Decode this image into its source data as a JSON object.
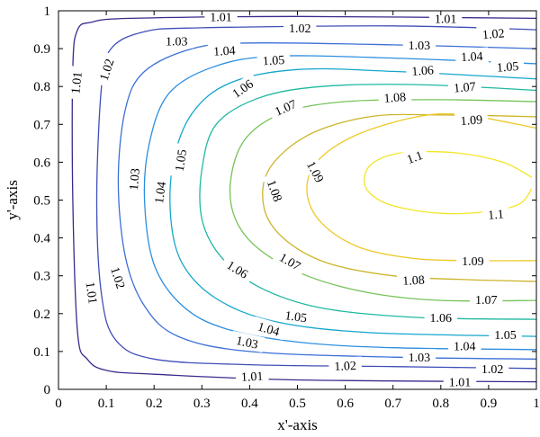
{
  "chart_data": {
    "type": "contour",
    "title": "",
    "xlabel": "x'-axis",
    "ylabel": "y'-axis",
    "xlim": [
      0,
      1
    ],
    "ylim": [
      0,
      1
    ],
    "x_ticks": [
      "0",
      "0.1",
      "0.2",
      "0.3",
      "0.4",
      "0.5",
      "0.6",
      "0.7",
      "0.8",
      "0.9",
      "1"
    ],
    "y_ticks": [
      "0",
      "0.1",
      "0.2",
      "0.3",
      "0.4",
      "0.5",
      "0.6",
      "0.7",
      "0.8",
      "0.9",
      "1"
    ],
    "grid": false,
    "levels": [
      {
        "label": "1.01",
        "value": 1.01,
        "color": "#3b2a8c",
        "points": [
          [
            1.0,
            0.98
          ],
          [
            0.5,
            0.985
          ],
          [
            0.15,
            0.98
          ],
          [
            0.07,
            0.97
          ],
          [
            0.04,
            0.95
          ],
          [
            0.03,
            0.85
          ],
          [
            0.03,
            0.5
          ],
          [
            0.04,
            0.15
          ],
          [
            0.06,
            0.08
          ],
          [
            0.1,
            0.05
          ],
          [
            0.2,
            0.04
          ],
          [
            0.5,
            0.025
          ],
          [
            1.0,
            0.02
          ]
        ],
        "labels": [
          {
            "x": 0.34,
            "y": 0.985,
            "text": "1.01",
            "angle": 0
          },
          {
            "x": 0.81,
            "y": 0.98,
            "text": "1.01",
            "angle": 0
          },
          {
            "x": 0.037,
            "y": 0.81,
            "text": "1.01",
            "angle": -84
          },
          {
            "x": 0.07,
            "y": 0.255,
            "text": "1.01",
            "angle": 82
          },
          {
            "x": 0.405,
            "y": 0.035,
            "text": "1.01",
            "angle": -3
          },
          {
            "x": 0.84,
            "y": 0.02,
            "text": "1.01",
            "angle": 0
          }
        ]
      },
      {
        "label": "1.02",
        "value": 1.02,
        "color": "#3f4fb8",
        "points": [
          [
            1.0,
            0.95
          ],
          [
            0.7,
            0.96
          ],
          [
            0.3,
            0.955
          ],
          [
            0.18,
            0.945
          ],
          [
            0.11,
            0.9
          ],
          [
            0.09,
            0.8
          ],
          [
            0.08,
            0.5
          ],
          [
            0.09,
            0.25
          ],
          [
            0.12,
            0.13
          ],
          [
            0.2,
            0.08
          ],
          [
            0.4,
            0.065
          ],
          [
            0.7,
            0.06
          ],
          [
            1.0,
            0.055
          ]
        ],
        "labels": [
          {
            "x": 0.505,
            "y": 0.955,
            "text": "1.02",
            "angle": 0
          },
          {
            "x": 0.91,
            "y": 0.94,
            "text": "1.02",
            "angle": -5
          },
          {
            "x": 0.1,
            "y": 0.845,
            "text": "1.02",
            "angle": -72
          },
          {
            "x": 0.125,
            "y": 0.295,
            "text": "1.02",
            "angle": 72
          },
          {
            "x": 0.6,
            "y": 0.063,
            "text": "1.02",
            "angle": -3
          },
          {
            "x": 0.908,
            "y": 0.055,
            "text": "1.02",
            "angle": 0
          }
        ]
      },
      {
        "label": "1.03",
        "value": 1.03,
        "color": "#3c6fd6",
        "points": [
          [
            1.0,
            0.9
          ],
          [
            0.7,
            0.91
          ],
          [
            0.4,
            0.915
          ],
          [
            0.28,
            0.9
          ],
          [
            0.18,
            0.84
          ],
          [
            0.14,
            0.74
          ],
          [
            0.125,
            0.55
          ],
          [
            0.14,
            0.35
          ],
          [
            0.18,
            0.22
          ],
          [
            0.25,
            0.14
          ],
          [
            0.4,
            0.1
          ],
          [
            0.7,
            0.085
          ],
          [
            1.0,
            0.08
          ]
        ],
        "labels": [
          {
            "x": 0.247,
            "y": 0.92,
            "text": "1.03",
            "angle": 0
          },
          {
            "x": 0.755,
            "y": 0.91,
            "text": "1.03",
            "angle": 0
          },
          {
            "x": 0.158,
            "y": 0.555,
            "text": "1.03",
            "angle": -85
          },
          {
            "x": 0.395,
            "y": 0.125,
            "text": "1.03",
            "angle": 12
          },
          {
            "x": 0.755,
            "y": 0.085,
            "text": "1.03",
            "angle": 0
          }
        ]
      },
      {
        "label": "1.04",
        "value": 1.04,
        "color": "#2d8fe0",
        "points": [
          [
            1.0,
            0.86
          ],
          [
            0.7,
            0.875
          ],
          [
            0.45,
            0.88
          ],
          [
            0.32,
            0.85
          ],
          [
            0.23,
            0.78
          ],
          [
            0.19,
            0.65
          ],
          [
            0.18,
            0.5
          ],
          [
            0.2,
            0.33
          ],
          [
            0.26,
            0.22
          ],
          [
            0.35,
            0.16
          ],
          [
            0.5,
            0.125
          ],
          [
            0.7,
            0.11
          ],
          [
            1.0,
            0.105
          ]
        ],
        "labels": [
          {
            "x": 0.347,
            "y": 0.895,
            "text": "1.04",
            "angle": -3
          },
          {
            "x": 0.865,
            "y": 0.88,
            "text": "1.04",
            "angle": -3
          },
          {
            "x": 0.212,
            "y": 0.52,
            "text": "1.04",
            "angle": -82
          },
          {
            "x": 0.44,
            "y": 0.16,
            "text": "1.04",
            "angle": 16
          },
          {
            "x": 0.85,
            "y": 0.115,
            "text": "1.04",
            "angle": 0
          }
        ]
      },
      {
        "label": "1.05",
        "value": 1.05,
        "color": "#16a6cc",
        "points": [
          [
            1.0,
            0.82
          ],
          [
            0.7,
            0.84
          ],
          [
            0.5,
            0.845
          ],
          [
            0.36,
            0.81
          ],
          [
            0.28,
            0.73
          ],
          [
            0.24,
            0.6
          ],
          [
            0.235,
            0.45
          ],
          [
            0.26,
            0.33
          ],
          [
            0.33,
            0.24
          ],
          [
            0.45,
            0.18
          ],
          [
            0.65,
            0.15
          ],
          [
            1.0,
            0.14
          ]
        ],
        "labels": [
          {
            "x": 0.45,
            "y": 0.87,
            "text": "1.05",
            "angle": -3
          },
          {
            "x": 0.94,
            "y": 0.853,
            "text": "1.05",
            "angle": -4
          },
          {
            "x": 0.255,
            "y": 0.605,
            "text": "1.05",
            "angle": -82
          },
          {
            "x": 0.497,
            "y": 0.193,
            "text": "1.05",
            "angle": 8
          },
          {
            "x": 0.935,
            "y": 0.145,
            "text": "1.05",
            "angle": 0
          }
        ]
      },
      {
        "label": "1.06",
        "value": 1.06,
        "color": "#1fb8a0",
        "points": [
          [
            1.0,
            0.79
          ],
          [
            0.75,
            0.805
          ],
          [
            0.55,
            0.8
          ],
          [
            0.42,
            0.77
          ],
          [
            0.33,
            0.7
          ],
          [
            0.3,
            0.58
          ],
          [
            0.3,
            0.45
          ],
          [
            0.34,
            0.35
          ],
          [
            0.42,
            0.27
          ],
          [
            0.55,
            0.215
          ],
          [
            0.75,
            0.19
          ],
          [
            1.0,
            0.185
          ]
        ],
        "labels": [
          {
            "x": 0.762,
            "y": 0.843,
            "text": "1.06",
            "angle": -4
          },
          {
            "x": 0.385,
            "y": 0.795,
            "text": "1.06",
            "angle": -35
          },
          {
            "x": 0.375,
            "y": 0.317,
            "text": "1.06",
            "angle": 32
          },
          {
            "x": 0.8,
            "y": 0.19,
            "text": "1.06",
            "angle": 0
          }
        ]
      },
      {
        "label": "1.07",
        "value": 1.07,
        "color": "#76c35a",
        "points": [
          [
            1.0,
            0.76
          ],
          [
            0.8,
            0.765
          ],
          [
            0.6,
            0.76
          ],
          [
            0.47,
            0.73
          ],
          [
            0.39,
            0.66
          ],
          [
            0.36,
            0.55
          ],
          [
            0.37,
            0.45
          ],
          [
            0.42,
            0.37
          ],
          [
            0.52,
            0.3
          ],
          [
            0.65,
            0.255
          ],
          [
            0.8,
            0.235
          ],
          [
            1.0,
            0.235
          ]
        ],
        "labels": [
          {
            "x": 0.85,
            "y": 0.799,
            "text": "1.07",
            "angle": -5
          },
          {
            "x": 0.475,
            "y": 0.745,
            "text": "1.07",
            "angle": -24
          },
          {
            "x": 0.485,
            "y": 0.338,
            "text": "1.07",
            "angle": 30
          },
          {
            "x": 0.895,
            "y": 0.237,
            "text": "1.07",
            "angle": 0
          }
        ]
      },
      {
        "label": "1.08",
        "value": 1.08,
        "color": "#ccb42a",
        "points": [
          [
            1.0,
            0.72
          ],
          [
            0.8,
            0.725
          ],
          [
            0.65,
            0.72
          ],
          [
            0.52,
            0.67
          ],
          [
            0.44,
            0.58
          ],
          [
            0.43,
            0.48
          ],
          [
            0.47,
            0.4
          ],
          [
            0.56,
            0.335
          ],
          [
            0.7,
            0.3
          ],
          [
            0.85,
            0.29
          ],
          [
            1.0,
            0.285
          ]
        ],
        "labels": [
          {
            "x": 0.704,
            "y": 0.772,
            "text": "1.08",
            "angle": -4
          },
          {
            "x": 0.453,
            "y": 0.525,
            "text": "1.08",
            "angle": 70
          },
          {
            "x": 0.743,
            "y": 0.289,
            "text": "1.08",
            "angle": -3
          }
        ]
      },
      {
        "label": "1.09",
        "value": 1.09,
        "color": "#eec92a",
        "points": [
          [
            1.0,
            0.69
          ],
          [
            0.85,
            0.725
          ],
          [
            0.75,
            0.72
          ],
          [
            0.62,
            0.67
          ],
          [
            0.54,
            0.6
          ],
          [
            0.52,
            0.52
          ],
          [
            0.55,
            0.44
          ],
          [
            0.63,
            0.375
          ],
          [
            0.75,
            0.345
          ],
          [
            0.88,
            0.34
          ],
          [
            1.0,
            0.34
          ]
        ],
        "labels": [
          {
            "x": 0.864,
            "y": 0.712,
            "text": "1.09",
            "angle": -5
          },
          {
            "x": 0.538,
            "y": 0.575,
            "text": "1.09",
            "angle": 62
          },
          {
            "x": 0.867,
            "y": 0.34,
            "text": "1.09",
            "angle": 0
          }
        ]
      },
      {
        "label": "1.1",
        "value": 1.1,
        "color": "#f3e626",
        "points": [
          [
            0.99,
            0.56
          ],
          [
            0.93,
            0.6
          ],
          [
            0.83,
            0.625
          ],
          [
            0.72,
            0.625
          ],
          [
            0.66,
            0.6
          ],
          [
            0.64,
            0.56
          ],
          [
            0.65,
            0.52
          ],
          [
            0.7,
            0.485
          ],
          [
            0.8,
            0.465
          ],
          [
            0.9,
            0.47
          ],
          [
            0.965,
            0.49
          ],
          [
            0.99,
            0.53
          ]
        ],
        "labels": [
          {
            "x": 0.745,
            "y": 0.614,
            "text": "1.1",
            "angle": -20
          },
          {
            "x": 0.915,
            "y": 0.463,
            "text": "1.1",
            "angle": -5
          }
        ]
      }
    ]
  }
}
